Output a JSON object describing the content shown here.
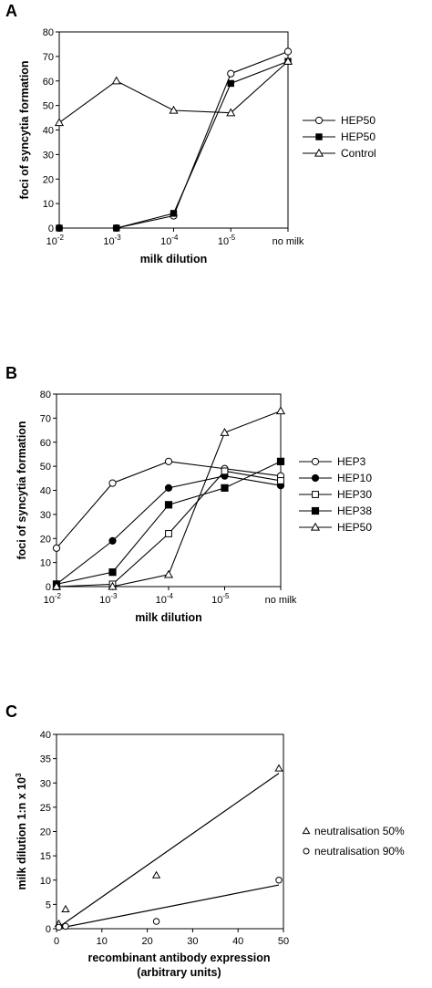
{
  "chart_data": [
    {
      "panel": "A",
      "type": "line",
      "xlabel": "milk dilution",
      "ylabel": "foci of syncytia formation",
      "categories": [
        "10-2",
        "10-3",
        "10-4",
        "10-5",
        "no milk"
      ],
      "category_labels": [
        {
          "base": "10",
          "exp": "-2"
        },
        {
          "base": "10",
          "exp": "-3"
        },
        {
          "base": "10",
          "exp": "-4"
        },
        {
          "base": "10",
          "exp": "-5"
        },
        {
          "base": "no milk",
          "exp": ""
        }
      ],
      "category_x": [
        0,
        1,
        2,
        3,
        4
      ],
      "xlim": [
        0,
        4
      ],
      "ylim": [
        0,
        80
      ],
      "yticks": [
        0,
        10,
        20,
        30,
        40,
        50,
        60,
        70,
        80
      ],
      "legend_position": "right",
      "series": [
        {
          "name": "HEP50",
          "marker": "circle-open",
          "x": [
            0,
            1,
            2,
            3,
            4
          ],
          "values": [
            0,
            0,
            5,
            63,
            72
          ]
        },
        {
          "name": "HEP50",
          "marker": "square-filled-small",
          "x": [
            0,
            1,
            2,
            3,
            4
          ],
          "values": [
            0,
            0,
            6,
            59,
            68
          ]
        },
        {
          "name": "Control",
          "marker": "triangle-open",
          "x": [
            0,
            1,
            2,
            3,
            4
          ],
          "values": [
            43,
            60,
            48,
            47,
            68
          ]
        }
      ]
    },
    {
      "panel": "B",
      "type": "line",
      "xlabel": "milk dilution",
      "ylabel": "foci of syncytia formation",
      "categories": [
        "10-2",
        "10-3",
        "10-4",
        "10-5",
        "no milk"
      ],
      "category_labels": [
        {
          "base": "10",
          "exp": "-2"
        },
        {
          "base": "10",
          "exp": "-3"
        },
        {
          "base": "10",
          "exp": "-4"
        },
        {
          "base": "10",
          "exp": "-5"
        },
        {
          "base": "no milk",
          "exp": ""
        }
      ],
      "category_x": [
        0,
        1,
        2,
        3,
        4
      ],
      "xlim": [
        0,
        4
      ],
      "ylim": [
        0,
        80
      ],
      "yticks": [
        0,
        10,
        20,
        30,
        40,
        50,
        60,
        70,
        80
      ],
      "legend_position": "right",
      "series": [
        {
          "name": "HEP3",
          "marker": "circle-open",
          "x": [
            0,
            1,
            2,
            3,
            4
          ],
          "values": [
            16,
            43,
            52,
            49,
            46
          ]
        },
        {
          "name": "HEP10",
          "marker": "circle-filled",
          "x": [
            0,
            1,
            2,
            3,
            4
          ],
          "values": [
            1,
            19,
            41,
            46,
            42
          ]
        },
        {
          "name": "HEP30",
          "marker": "square-open",
          "x": [
            0,
            1,
            2,
            3,
            4
          ],
          "values": [
            0,
            1,
            22,
            48,
            44
          ]
        },
        {
          "name": "HEP38",
          "marker": "square-filled",
          "x": [
            0,
            1,
            2,
            3,
            4
          ],
          "values": [
            1,
            6,
            34,
            41,
            52
          ]
        },
        {
          "name": "HEP50",
          "marker": "triangle-open",
          "x": [
            0,
            1,
            2,
            3,
            4
          ],
          "values": [
            0,
            0,
            5,
            64,
            73
          ]
        }
      ]
    },
    {
      "panel": "C",
      "type": "scatter",
      "xlabel": "recombinant antibody expression",
      "xlabel2": "(arbitrary units)",
      "ylabel": "milk dilution 1:n x 10",
      "ylabel_sup": "3",
      "xlim": [
        0,
        50
      ],
      "ylim": [
        0,
        40
      ],
      "xticks": [
        0,
        10,
        20,
        30,
        40,
        50
      ],
      "yticks": [
        0,
        5,
        10,
        15,
        20,
        25,
        30,
        35,
        40
      ],
      "legend_position": "right",
      "series": [
        {
          "name": "neutralisation 50%",
          "marker": "triangle-open",
          "x": [
            0.5,
            2,
            22,
            49
          ],
          "values": [
            1,
            4,
            11,
            33
          ],
          "fit": [
            [
              0,
              0
            ],
            [
              49,
              32
            ]
          ]
        },
        {
          "name": "neutralisation 90%",
          "marker": "circle-open",
          "x": [
            0.5,
            2,
            22,
            49
          ],
          "values": [
            0.3,
            0.5,
            1.5,
            10
          ],
          "fit": [
            [
              0,
              0
            ],
            [
              49,
              9
            ]
          ]
        }
      ]
    }
  ]
}
